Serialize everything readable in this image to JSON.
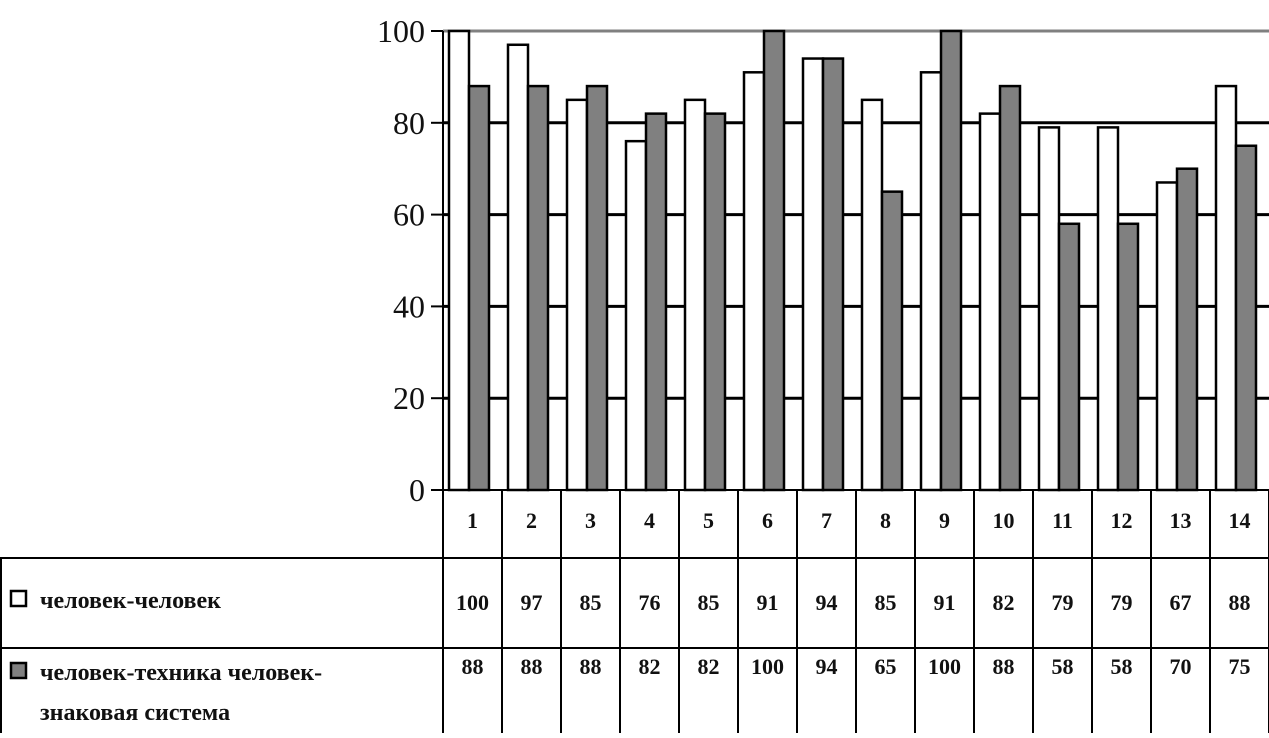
{
  "chart_data": {
    "type": "bar",
    "categories": [
      "1",
      "2",
      "3",
      "4",
      "5",
      "6",
      "7",
      "8",
      "9",
      "10",
      "11",
      "12",
      "13",
      "14"
    ],
    "series": [
      {
        "name": "человек-человек",
        "color": "#ffffff",
        "values": [
          100,
          97,
          85,
          76,
          85,
          91,
          94,
          85,
          91,
          82,
          79,
          79,
          67,
          88
        ]
      },
      {
        "name_lines": [
          "человек-техника человек-",
          "знаковая система"
        ],
        "color": "#808080",
        "values": [
          88,
          88,
          88,
          82,
          82,
          100,
          94,
          65,
          100,
          88,
          58,
          58,
          70,
          75
        ]
      }
    ],
    "ylim": [
      0,
      100
    ],
    "yticks": [
      "0",
      "20",
      "40",
      "60",
      "80",
      "100"
    ],
    "grid": true,
    "data_table": true
  }
}
